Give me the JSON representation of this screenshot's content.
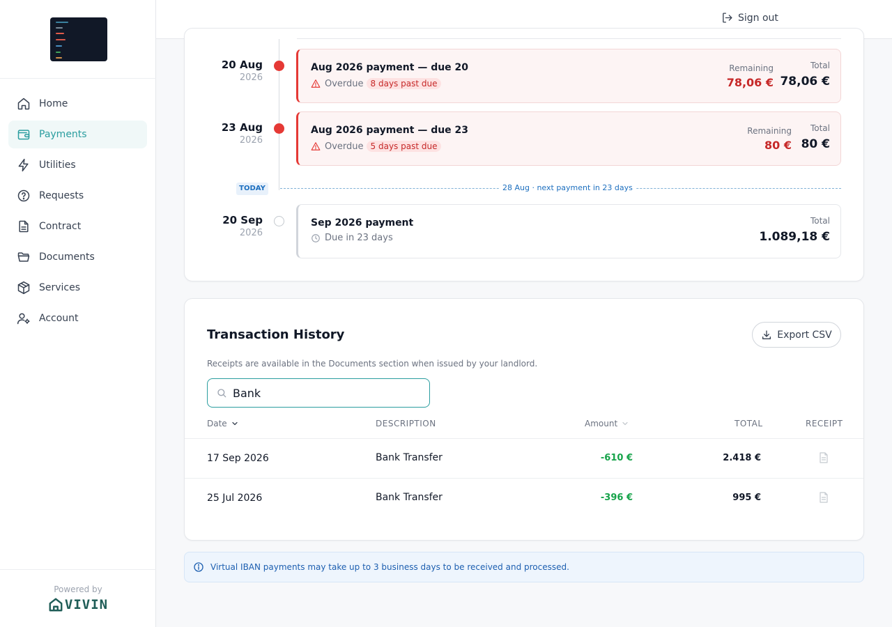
{
  "nav": {
    "items": [
      {
        "label": "Home",
        "icon": "home-icon"
      },
      {
        "label": "Payments",
        "icon": "wallet-icon",
        "active": true
      },
      {
        "label": "Utilities",
        "icon": "bolt-icon"
      },
      {
        "label": "Requests",
        "icon": "help-circle-icon"
      },
      {
        "label": "Contract",
        "icon": "file-text-icon"
      },
      {
        "label": "Documents",
        "icon": "folder-icon"
      },
      {
        "label": "Services",
        "icon": "box-icon"
      },
      {
        "label": "Account",
        "icon": "user-cog-icon"
      }
    ],
    "powered_by": "Powered by",
    "brand": "VIVIN"
  },
  "header": {
    "sign_out": "Sign out"
  },
  "timeline": {
    "entries": [
      {
        "day": "20 Aug",
        "year": "2026",
        "title": "Aug 2026 payment — due 20",
        "status": "Overdue",
        "badge": "8 days past due",
        "remaining_label": "Remaining",
        "remaining": "78,06 €",
        "total_label": "Total",
        "total": "78,06 €"
      },
      {
        "day": "23 Aug",
        "year": "2026",
        "title": "Aug 2026 payment — due 23",
        "status": "Overdue",
        "badge": "5 days past due",
        "remaining_label": "Remaining",
        "remaining": "80 €",
        "total_label": "Total",
        "total": "80 €"
      },
      {
        "day": "20 Sep",
        "year": "2026",
        "title": "Sep 2026 payment",
        "status": "Due in 23 days",
        "total_label": "Total",
        "total": "1.089,18 €"
      }
    ],
    "today_badge": "TODAY",
    "today_text": "28 Aug · next payment in 23 days"
  },
  "transactions": {
    "title": "Transaction History",
    "export_label": "Export CSV",
    "subtitle": "Receipts are available in the Documents section when issued by your landlord.",
    "search_value": "Bank",
    "columns": [
      "Date",
      "DESCRIPTION",
      "Amount",
      "TOTAL",
      "RECEIPT"
    ],
    "rows": [
      {
        "date": "17 Sep 2026",
        "description": "Bank Transfer",
        "amount": "-610 €",
        "total": "2.418 €"
      },
      {
        "date": "25 Jul 2026",
        "description": "Bank Transfer",
        "amount": "-396 €",
        "total": "995 €"
      }
    ]
  },
  "info_banner": "Virtual IBAN payments may take up to 3 business days to be received and processed.",
  "colors": {
    "accent": "#2a9d9f",
    "overdue": "#e53935",
    "positive": "#16a34a",
    "info": "#1d5fb0"
  }
}
